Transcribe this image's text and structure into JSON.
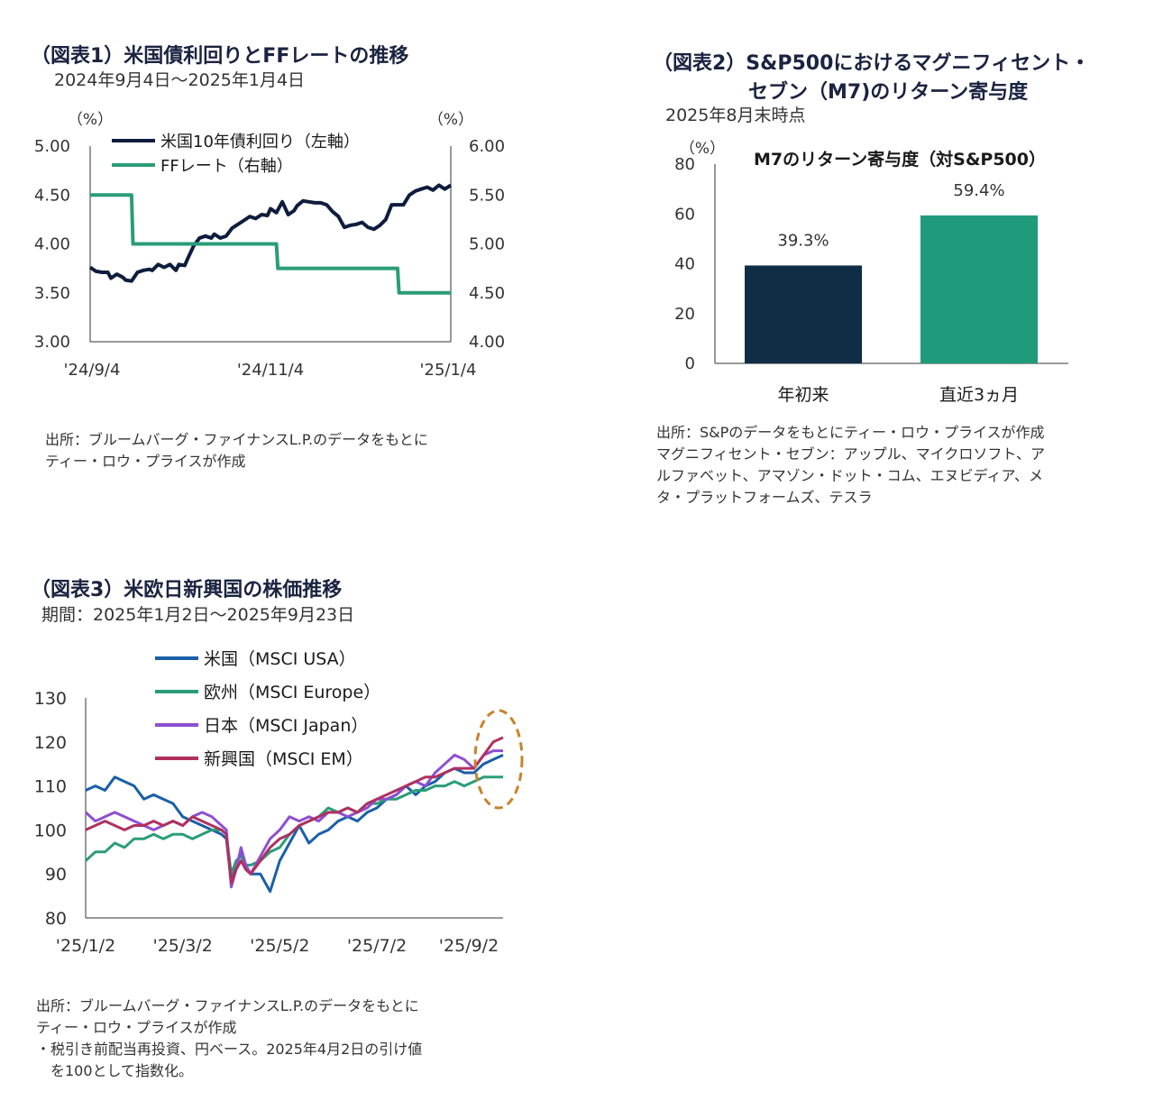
{
  "fig1": {
    "title": "（図表1）米国債利回りとFFレートの推移",
    "subtitle": "2024年9月4日～2025年1月4日",
    "source": [
      "出所：ブルームバーグ・ファイナンスL.P.のデータをもとに",
      "ティー・ロウ・プライスが作成"
    ]
  },
  "fig2": {
    "title": [
      "（図表2）S&P500におけるマグニフィセント・",
      "セブン（M7)のリターン寄与度"
    ],
    "subtitle": "2025年8月末時点",
    "source": [
      "出所：S&Pのデータをもとにティー・ロウ・プライスが作成",
      "マグニフィセント・セブン：アップル、マイクロソフト、ア",
      "ルファベット、アマゾン・ドット・コム、エヌビディア、メ",
      "タ・プラットフォームズ、テスラ"
    ]
  },
  "fig3": {
    "title": "（図表3）米欧日新興国の株価推移",
    "subtitle": "期間：2025年1月2日～2025年9月23日",
    "source": [
      "出所：ブルームバーグ・ファイナンスL.P.のデータをもとに",
      "ティー・ロウ・プライスが作成",
      "・税引き前配当再投資、円ベース。2025年4月2日の引け値",
      "　を100として指数化。"
    ]
  },
  "chart_data": [
    {
      "id": "fig1",
      "type": "line",
      "ylabel_left": "（%）",
      "ylabel_right": "（%）",
      "x_ticks": [
        "'24/9/4",
        "'24/11/4",
        "'25/1/4"
      ],
      "x_range": [
        0,
        122
      ],
      "ylim_left": [
        3.0,
        5.0
      ],
      "yticks_left": [
        "3.00",
        "3.50",
        "4.00",
        "4.50",
        "5.00"
      ],
      "ylim_right": [
        4.0,
        6.0
      ],
      "yticks_right": [
        "4.00",
        "4.50",
        "5.00",
        "5.50",
        "6.00"
      ],
      "series": [
        {
          "name": "米国10年債利回り（左軸）",
          "axis": "left",
          "color": "#0f1d3d",
          "x": [
            0,
            2,
            4,
            6,
            7,
            9,
            11,
            12,
            14,
            16,
            18,
            20,
            21,
            23,
            25,
            27,
            29,
            30,
            32,
            33,
            35,
            37,
            39,
            41,
            42,
            44,
            46,
            48,
            50,
            52,
            54,
            56,
            58,
            60,
            61,
            63,
            65,
            67,
            69,
            70,
            72,
            74,
            76,
            78,
            80,
            82,
            84,
            86,
            88,
            90,
            92,
            94,
            96,
            98,
            100,
            102,
            104,
            106,
            108,
            110,
            112,
            114,
            116,
            118,
            120,
            122
          ],
          "y": [
            3.76,
            3.72,
            3.71,
            3.71,
            3.65,
            3.69,
            3.66,
            3.63,
            3.62,
            3.71,
            3.73,
            3.74,
            3.73,
            3.79,
            3.76,
            3.79,
            3.73,
            3.79,
            3.78,
            3.85,
            3.98,
            4.06,
            4.08,
            4.06,
            4.1,
            4.06,
            4.08,
            4.16,
            4.2,
            4.24,
            4.28,
            4.26,
            4.3,
            4.29,
            4.36,
            4.32,
            4.43,
            4.3,
            4.34,
            4.39,
            4.44,
            4.43,
            4.42,
            4.42,
            4.4,
            4.33,
            4.28,
            4.17,
            4.19,
            4.2,
            4.22,
            4.17,
            4.15,
            4.19,
            4.25,
            4.4,
            4.4,
            4.4,
            4.5,
            4.54,
            4.56,
            4.58,
            4.55,
            4.6,
            4.56,
            4.6
          ]
        },
        {
          "name": "FFレート（右軸）",
          "axis": "right",
          "color": "#2a9d78",
          "x": [
            0,
            14,
            14.5,
            63,
            63.5,
            104,
            104.5,
            122
          ],
          "y": [
            5.5,
            5.5,
            5.0,
            5.0,
            4.75,
            4.75,
            4.5,
            4.5
          ]
        }
      ]
    },
    {
      "id": "fig2",
      "type": "bar",
      "title": "M7のリターン寄与度（対S&P500）",
      "ylabel": "（%）",
      "categories": [
        "年初来",
        "直近3ヵ月"
      ],
      "values": [
        39.3,
        59.4
      ],
      "labels": [
        "39.3%",
        "59.4%"
      ],
      "colors": [
        "#0f2d45",
        "#1f9b7c"
      ],
      "ylim": [
        0,
        80
      ],
      "yticks": [
        "0",
        "20",
        "40",
        "60",
        "80"
      ]
    },
    {
      "id": "fig3",
      "type": "line",
      "x_ticks": [
        "'25/1/2",
        "'25/3/2",
        "'25/5/2",
        "'25/7/2",
        "'25/9/2"
      ],
      "x_tick_pos": [
        0,
        20,
        40,
        60,
        80
      ],
      "x_range": [
        0,
        86
      ],
      "ylim": [
        80,
        130
      ],
      "yticks": [
        "80",
        "90",
        "100",
        "110",
        "120",
        "130"
      ],
      "highlight": "2025年9月のリターン上昇部分（点線楕円）",
      "series": [
        {
          "name": "米国（MSCI USA）",
          "color": "#1a5fa8",
          "x": [
            0,
            2,
            4,
            6,
            8,
            10,
            12,
            14,
            16,
            18,
            20,
            22,
            24,
            26,
            28,
            29,
            30,
            31,
            32,
            33,
            34,
            36,
            38,
            40,
            42,
            44,
            46,
            48,
            50,
            52,
            54,
            56,
            58,
            60,
            62,
            64,
            66,
            68,
            70,
            72,
            74,
            76,
            78,
            80,
            82,
            84,
            86
          ],
          "y": [
            109,
            110,
            109,
            112,
            111,
            110,
            107,
            108,
            107,
            106,
            103,
            102,
            101,
            100,
            99,
            98,
            88,
            92,
            95,
            91,
            90,
            90,
            86,
            93,
            97,
            101,
            97,
            99,
            100,
            102,
            103,
            102,
            104,
            105,
            107,
            108,
            110,
            108,
            110,
            111,
            113,
            114,
            113,
            113,
            115,
            116,
            117
          ]
        },
        {
          "name": "欧州（MSCI Europe）",
          "color": "#2a9d78",
          "x": [
            0,
            2,
            4,
            6,
            8,
            10,
            12,
            14,
            16,
            18,
            20,
            22,
            24,
            26,
            28,
            29,
            30,
            31,
            32,
            33,
            34,
            36,
            38,
            40,
            42,
            44,
            46,
            48,
            50,
            52,
            54,
            56,
            58,
            60,
            62,
            64,
            66,
            68,
            70,
            72,
            74,
            76,
            78,
            80,
            82,
            84,
            86
          ],
          "y": [
            93,
            95,
            95,
            97,
            96,
            98,
            98,
            99,
            98,
            99,
            99,
            98,
            99,
            100,
            100,
            99,
            90,
            93,
            94,
            92,
            92,
            93,
            95,
            96,
            99,
            101,
            102,
            103,
            105,
            104,
            105,
            104,
            106,
            106,
            107,
            107,
            108,
            109,
            109,
            110,
            110,
            111,
            110,
            111,
            112,
            112,
            112
          ]
        },
        {
          "name": "日本（MSCI Japan）",
          "color": "#8e4fd0",
          "x": [
            0,
            2,
            4,
            6,
            8,
            10,
            12,
            14,
            16,
            18,
            20,
            22,
            24,
            26,
            28,
            29,
            30,
            31,
            32,
            33,
            34,
            36,
            38,
            40,
            42,
            44,
            46,
            48,
            50,
            52,
            54,
            56,
            58,
            60,
            62,
            64,
            66,
            68,
            70,
            72,
            74,
            76,
            78,
            80,
            82,
            84,
            86
          ],
          "y": [
            104,
            102,
            103,
            104,
            103,
            102,
            101,
            100,
            101,
            102,
            101,
            103,
            104,
            103,
            101,
            100,
            87,
            91,
            96,
            92,
            90,
            94,
            98,
            100,
            103,
            102,
            103,
            102,
            104,
            104,
            103,
            104,
            105,
            107,
            107,
            108,
            110,
            111,
            110,
            113,
            115,
            117,
            116,
            114,
            117,
            118,
            118
          ]
        },
        {
          "name": "新興国（MSCI EM）",
          "color": "#b03060",
          "x": [
            0,
            2,
            4,
            6,
            8,
            10,
            12,
            14,
            16,
            18,
            20,
            22,
            24,
            26,
            28,
            29,
            30,
            31,
            32,
            33,
            34,
            36,
            38,
            40,
            42,
            44,
            46,
            48,
            50,
            52,
            54,
            56,
            58,
            60,
            62,
            64,
            66,
            68,
            70,
            72,
            74,
            76,
            78,
            80,
            82,
            84,
            86
          ],
          "y": [
            100,
            101,
            102,
            101,
            100,
            101,
            101,
            102,
            101,
            102,
            101,
            103,
            102,
            101,
            100,
            99,
            88,
            91,
            93,
            91,
            90,
            93,
            96,
            98,
            99,
            101,
            102,
            103,
            104,
            104,
            105,
            104,
            106,
            107,
            108,
            109,
            110,
            111,
            112,
            112,
            113,
            114,
            114,
            114,
            117,
            120,
            121
          ]
        }
      ]
    }
  ]
}
